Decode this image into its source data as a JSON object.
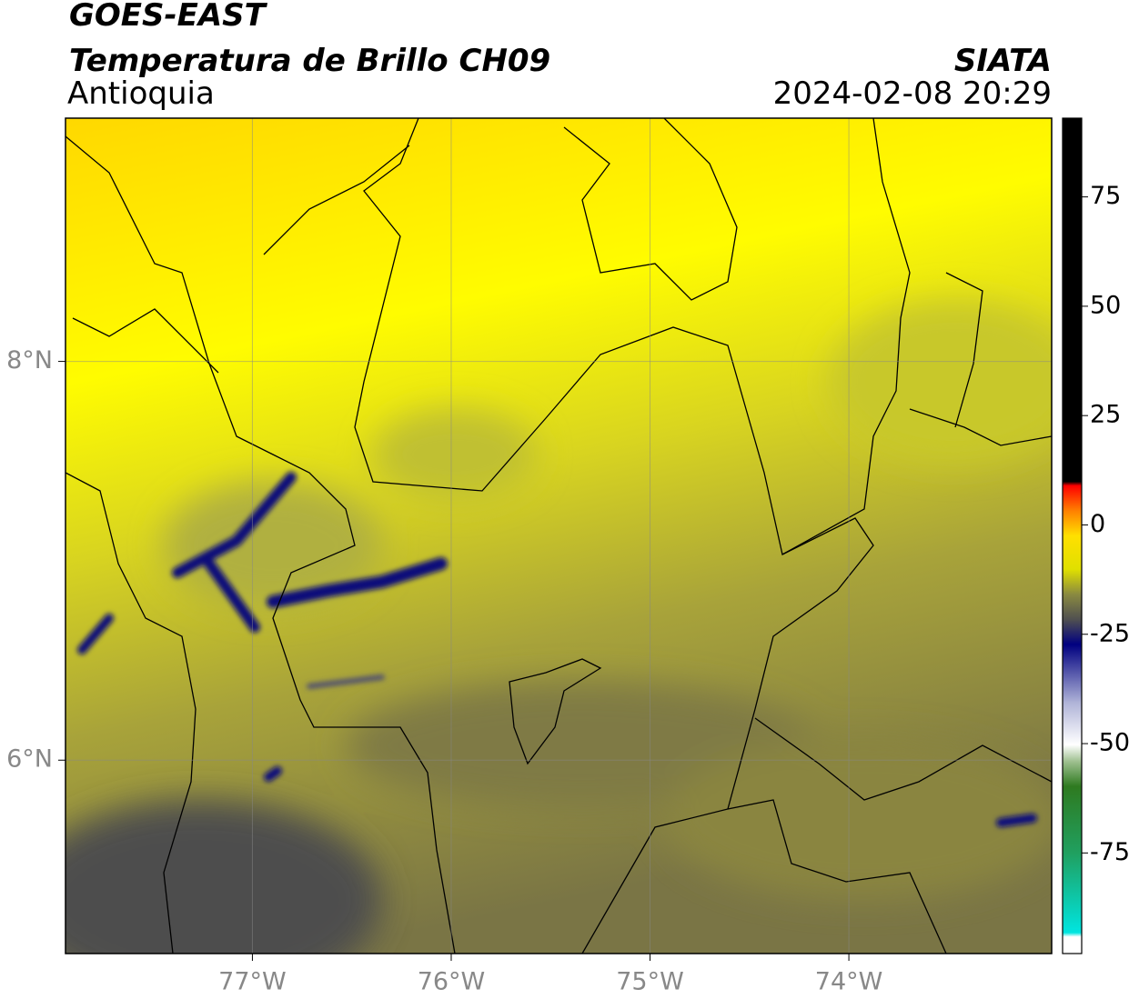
{
  "header": {
    "title": "GOES-EAST",
    "subtitle": "Temperatura de Brillo CH09",
    "region": "Antioquia",
    "source": "SIATA",
    "datetime": "2024-02-08 20:29"
  },
  "map": {
    "xlim": [
      -77.94,
      -72.98
    ],
    "ylim": [
      5.03,
      9.22
    ],
    "xticks": [
      {
        "value": -77,
        "label": "77°W"
      },
      {
        "value": -76,
        "label": "76°W"
      },
      {
        "value": -75,
        "label": "75°W"
      },
      {
        "value": -74,
        "label": "74°W"
      }
    ],
    "yticks": [
      {
        "value": 6,
        "label": "6°N"
      },
      {
        "value": 8,
        "label": "8°N"
      }
    ],
    "grid": true
  },
  "colorbar": {
    "lim": [
      -98,
      93
    ],
    "ticks": [
      -75,
      -50,
      -25,
      0,
      25,
      50,
      75
    ]
  }
}
